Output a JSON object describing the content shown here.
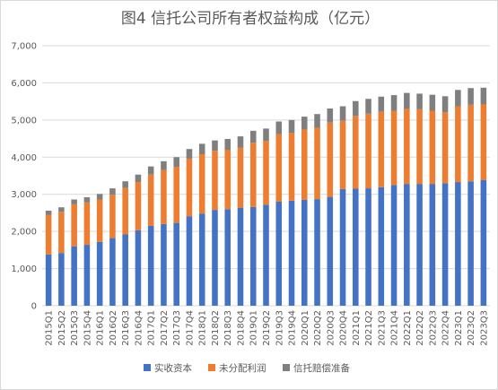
{
  "chart_data": {
    "type": "bar",
    "stacked": true,
    "title": "图4  信托公司所有者权益构成（亿元）",
    "xlabel": "",
    "ylabel": "",
    "ylim": [
      0,
      7000
    ],
    "yticks": [
      0,
      1000,
      2000,
      3000,
      4000,
      5000,
      6000,
      7000
    ],
    "ytick_labels": [
      "0",
      "1,000",
      "2,000",
      "3,000",
      "4,000",
      "5,000",
      "6,000",
      "7,000"
    ],
    "grid": true,
    "legend_position": "bottom",
    "categories": [
      "2015Q1",
      "2015Q2",
      "2015Q3",
      "2015Q4",
      "2016Q1",
      "2016Q2",
      "2016Q3",
      "2016Q4",
      "2017Q1",
      "2017Q2",
      "2017Q3",
      "2017Q4",
      "2018Q1",
      "2018Q2",
      "2018Q3",
      "2018Q4",
      "2019Q1",
      "2019Q2",
      "2019Q3",
      "2019Q4",
      "2020Q1",
      "2020Q2",
      "2020Q3",
      "2020Q4",
      "2021Q1",
      "2021Q2",
      "2021Q3",
      "2021Q4",
      "2022Q1",
      "2022Q2",
      "2022Q3",
      "2022Q4",
      "2023Q1",
      "2023Q2",
      "2023Q3"
    ],
    "series": [
      {
        "name": "实收资本",
        "color": "#4472c4",
        "values": [
          1380,
          1420,
          1600,
          1640,
          1720,
          1820,
          1920,
          2030,
          2150,
          2200,
          2230,
          2410,
          2480,
          2580,
          2600,
          2640,
          2660,
          2720,
          2800,
          2830,
          2850,
          2870,
          2930,
          3140,
          3150,
          3160,
          3190,
          3250,
          3280,
          3280,
          3280,
          3300,
          3330,
          3350,
          3380
        ]
      },
      {
        "name": "未分配利润",
        "color": "#ed7d31",
        "values": [
          1070,
          1110,
          1130,
          1140,
          1140,
          1170,
          1250,
          1300,
          1380,
          1450,
          1510,
          1550,
          1600,
          1590,
          1600,
          1620,
          1730,
          1720,
          1820,
          1820,
          1890,
          1920,
          2000,
          1840,
          1960,
          2010,
          2030,
          2000,
          2020,
          2010,
          1970,
          1910,
          2040,
          2060,
          2040
        ]
      },
      {
        "name": "信托赔偿准备",
        "color": "#7f7f7f",
        "values": [
          110,
          120,
          130,
          140,
          150,
          170,
          180,
          200,
          220,
          240,
          260,
          260,
          280,
          280,
          290,
          300,
          320,
          330,
          340,
          350,
          350,
          370,
          380,
          390,
          400,
          400,
          410,
          420,
          430,
          420,
          430,
          430,
          440,
          450,
          450
        ]
      }
    ]
  }
}
